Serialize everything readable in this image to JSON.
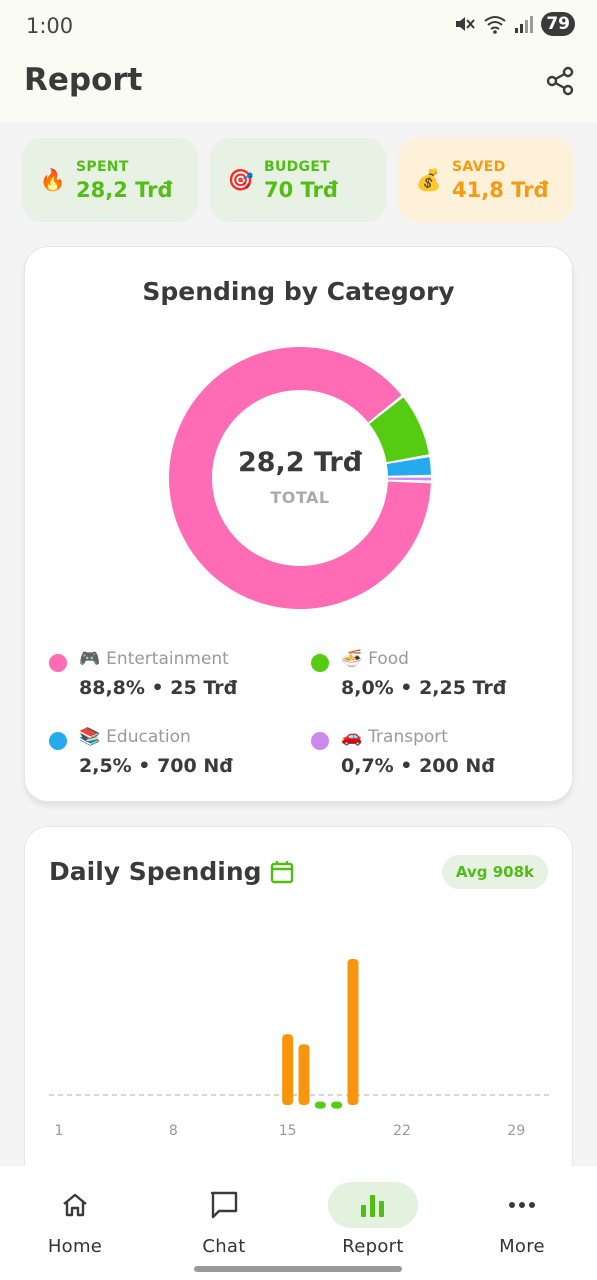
{
  "status_bar": {
    "time": "1:00",
    "battery": "79"
  },
  "header": {
    "title": "Report"
  },
  "stats": [
    {
      "label": "SPENT",
      "value": "28,2 Trđ",
      "icon": "🔥"
    },
    {
      "label": "BUDGET",
      "value": "70 Trđ",
      "icon": "🎯"
    },
    {
      "label": "SAVED",
      "value": "41,8 Trđ",
      "icon": "💰"
    }
  ],
  "category": {
    "title": "Spending by Category",
    "total_value": "28,2 Trđ",
    "total_label": "TOTAL",
    "items": [
      {
        "name": "Entertainment",
        "emoji": "🎮",
        "value_text": "88,8% • 25 Trđ",
        "percent": 88.8,
        "color": "#ff6bb5"
      },
      {
        "name": "Food",
        "emoji": "🍜",
        "value_text": "8,0% • 2,25 Trđ",
        "percent": 8.0,
        "color": "#55cc11"
      },
      {
        "name": "Education",
        "emoji": "📚",
        "value_text": "2,5% • 700 Nđ",
        "percent": 2.5,
        "color": "#25aaee"
      },
      {
        "name": "Transport",
        "emoji": "🚗",
        "value_text": "0,7% • 200 Nđ",
        "percent": 0.7,
        "color": "#cc88ee"
      }
    ]
  },
  "daily": {
    "title": "Daily Spending",
    "avg_label": "Avg 908k"
  },
  "chart_data": {
    "type": "bar",
    "x_ticks": [
      "1",
      "8",
      "15",
      "22",
      "29"
    ],
    "x": [
      15,
      16,
      17,
      18,
      19
    ],
    "values": [
      0.63,
      0.54,
      0.03,
      0.03,
      1.3
    ],
    "colors": [
      "#f7960c",
      "#f7960c",
      "#55cc11",
      "#55cc11",
      "#f7960c"
    ],
    "reference_line": 0,
    "xlim": [
      1,
      31
    ]
  },
  "nav": [
    {
      "label": "Home",
      "icon": "home-icon"
    },
    {
      "label": "Chat",
      "icon": "chat-icon"
    },
    {
      "label": "Report",
      "icon": "bar-chart-icon",
      "active": true
    },
    {
      "label": "More",
      "icon": "more-icon"
    }
  ]
}
